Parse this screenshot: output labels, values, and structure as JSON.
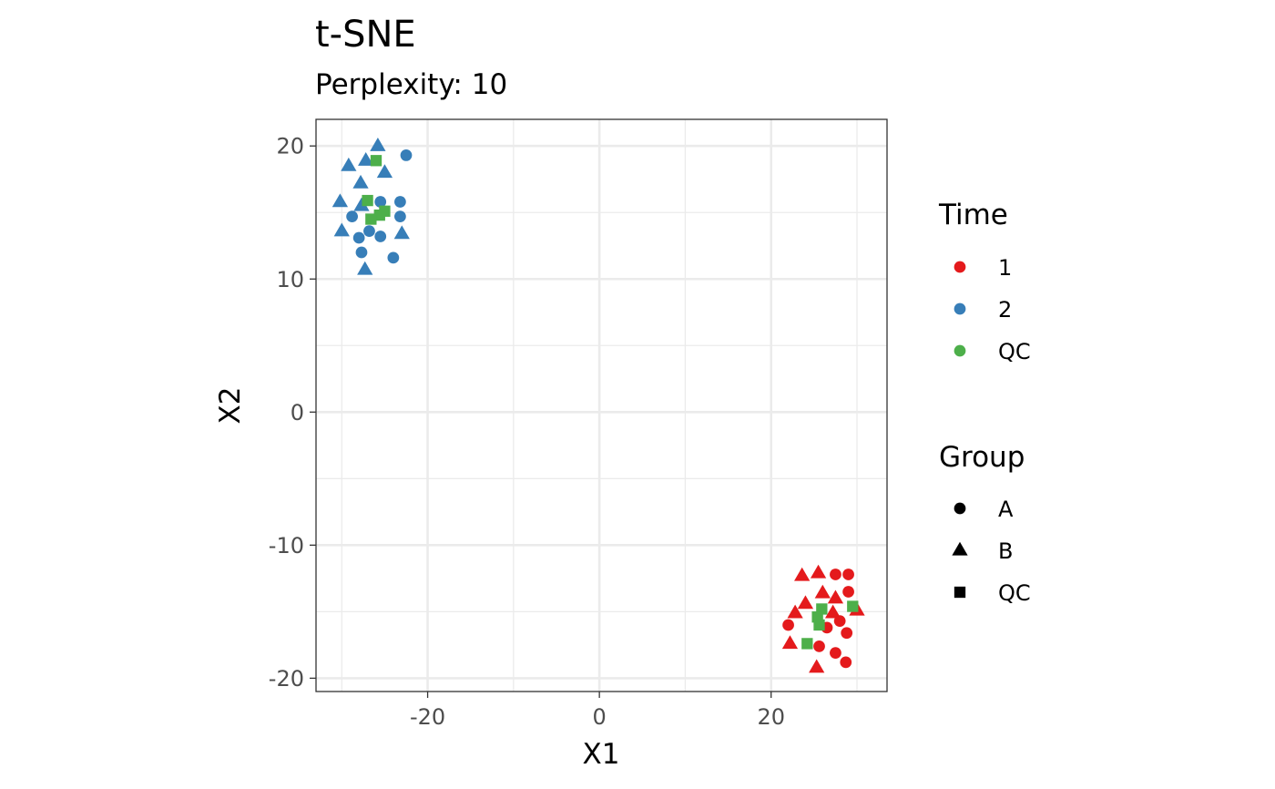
{
  "chart_data": {
    "type": "scatter",
    "title": "t-SNE",
    "subtitle": "Perplexity: 10",
    "xlabel": "X1",
    "ylabel": "X2",
    "xlim": [
      -33,
      33.5
    ],
    "ylim": [
      -21,
      22
    ],
    "x_major_ticks": [
      -20,
      0,
      20
    ],
    "x_minor_ticks": [
      -30,
      -10,
      10,
      30
    ],
    "y_major_ticks": [
      -20,
      -10,
      0,
      10,
      20
    ],
    "y_minor_ticks": [
      -15,
      -5,
      5,
      15
    ],
    "x_tick_labels": [
      "-20",
      "0",
      "20"
    ],
    "y_tick_labels": [
      "-20",
      "-10",
      "0",
      "10",
      "20"
    ],
    "grid": true,
    "legend_position": "right",
    "legends": [
      {
        "title": "Time",
        "key": "color",
        "entries": [
          {
            "label": "1",
            "color": "#e41a1c"
          },
          {
            "label": "2",
            "color": "#377eb8"
          },
          {
            "label": "QC",
            "color": "#4daf4a"
          }
        ]
      },
      {
        "title": "Group",
        "key": "shape",
        "entries": [
          {
            "label": "A",
            "shape": "circle"
          },
          {
            "label": "B",
            "shape": "triangle"
          },
          {
            "label": "QC",
            "shape": "square"
          }
        ]
      }
    ],
    "points": [
      {
        "x": -22.5,
        "y": 19.3,
        "time": "2",
        "group": "A"
      },
      {
        "x": -28.8,
        "y": 14.7,
        "time": "2",
        "group": "A"
      },
      {
        "x": -25.5,
        "y": 15.8,
        "time": "2",
        "group": "A"
      },
      {
        "x": -23.2,
        "y": 15.8,
        "time": "2",
        "group": "A"
      },
      {
        "x": -23.2,
        "y": 14.7,
        "time": "2",
        "group": "A"
      },
      {
        "x": -28.0,
        "y": 13.1,
        "time": "2",
        "group": "A"
      },
      {
        "x": -26.8,
        "y": 13.6,
        "time": "2",
        "group": "A"
      },
      {
        "x": -25.5,
        "y": 13.2,
        "time": "2",
        "group": "A"
      },
      {
        "x": -27.7,
        "y": 12.0,
        "time": "2",
        "group": "A"
      },
      {
        "x": -24.0,
        "y": 11.6,
        "time": "2",
        "group": "A"
      },
      {
        "x": -25.8,
        "y": 20.0,
        "time": "2",
        "group": "B"
      },
      {
        "x": -29.2,
        "y": 18.5,
        "time": "2",
        "group": "B"
      },
      {
        "x": -27.2,
        "y": 18.9,
        "time": "2",
        "group": "B"
      },
      {
        "x": -25.0,
        "y": 18.0,
        "time": "2",
        "group": "B"
      },
      {
        "x": -27.8,
        "y": 17.2,
        "time": "2",
        "group": "B"
      },
      {
        "x": -30.2,
        "y": 15.8,
        "time": "2",
        "group": "B"
      },
      {
        "x": -27.7,
        "y": 15.5,
        "time": "2",
        "group": "B"
      },
      {
        "x": -30.0,
        "y": 13.6,
        "time": "2",
        "group": "B"
      },
      {
        "x": -23.0,
        "y": 13.4,
        "time": "2",
        "group": "B"
      },
      {
        "x": -27.3,
        "y": 10.7,
        "time": "2",
        "group": "B"
      },
      {
        "x": -26.0,
        "y": 18.9,
        "time": "QC",
        "group": "QC"
      },
      {
        "x": -27.0,
        "y": 15.9,
        "time": "QC",
        "group": "QC"
      },
      {
        "x": -25.0,
        "y": 15.1,
        "time": "QC",
        "group": "QC"
      },
      {
        "x": -25.6,
        "y": 14.8,
        "time": "QC",
        "group": "QC"
      },
      {
        "x": -26.6,
        "y": 14.5,
        "time": "QC",
        "group": "QC"
      },
      {
        "x": 27.5,
        "y": -12.2,
        "time": "1",
        "group": "A"
      },
      {
        "x": 29.0,
        "y": -12.2,
        "time": "1",
        "group": "A"
      },
      {
        "x": 29.0,
        "y": -13.5,
        "time": "1",
        "group": "A"
      },
      {
        "x": 22.0,
        "y": -16.0,
        "time": "1",
        "group": "A"
      },
      {
        "x": 26.5,
        "y": -16.2,
        "time": "1",
        "group": "A"
      },
      {
        "x": 28.0,
        "y": -15.7,
        "time": "1",
        "group": "A"
      },
      {
        "x": 28.8,
        "y": -16.6,
        "time": "1",
        "group": "A"
      },
      {
        "x": 25.6,
        "y": -17.6,
        "time": "1",
        "group": "A"
      },
      {
        "x": 27.5,
        "y": -18.1,
        "time": "1",
        "group": "A"
      },
      {
        "x": 28.7,
        "y": -18.8,
        "time": "1",
        "group": "A"
      },
      {
        "x": 23.6,
        "y": -12.3,
        "time": "1",
        "group": "B"
      },
      {
        "x": 25.5,
        "y": -12.1,
        "time": "1",
        "group": "B"
      },
      {
        "x": 26.0,
        "y": -13.6,
        "time": "1",
        "group": "B"
      },
      {
        "x": 24.0,
        "y": -14.4,
        "time": "1",
        "group": "B"
      },
      {
        "x": 27.5,
        "y": -14.0,
        "time": "1",
        "group": "B"
      },
      {
        "x": 22.8,
        "y": -15.1,
        "time": "1",
        "group": "B"
      },
      {
        "x": 27.2,
        "y": -15.1,
        "time": "1",
        "group": "B"
      },
      {
        "x": 30.0,
        "y": -14.9,
        "time": "1",
        "group": "B"
      },
      {
        "x": 22.2,
        "y": -17.4,
        "time": "1",
        "group": "B"
      },
      {
        "x": 25.3,
        "y": -19.2,
        "time": "1",
        "group": "B"
      },
      {
        "x": 25.9,
        "y": -14.8,
        "time": "QC",
        "group": "QC"
      },
      {
        "x": 29.5,
        "y": -14.6,
        "time": "QC",
        "group": "QC"
      },
      {
        "x": 25.4,
        "y": -15.4,
        "time": "QC",
        "group": "QC"
      },
      {
        "x": 25.6,
        "y": -16.0,
        "time": "QC",
        "group": "QC"
      },
      {
        "x": 24.2,
        "y": -17.4,
        "time": "QC",
        "group": "QC"
      }
    ]
  }
}
